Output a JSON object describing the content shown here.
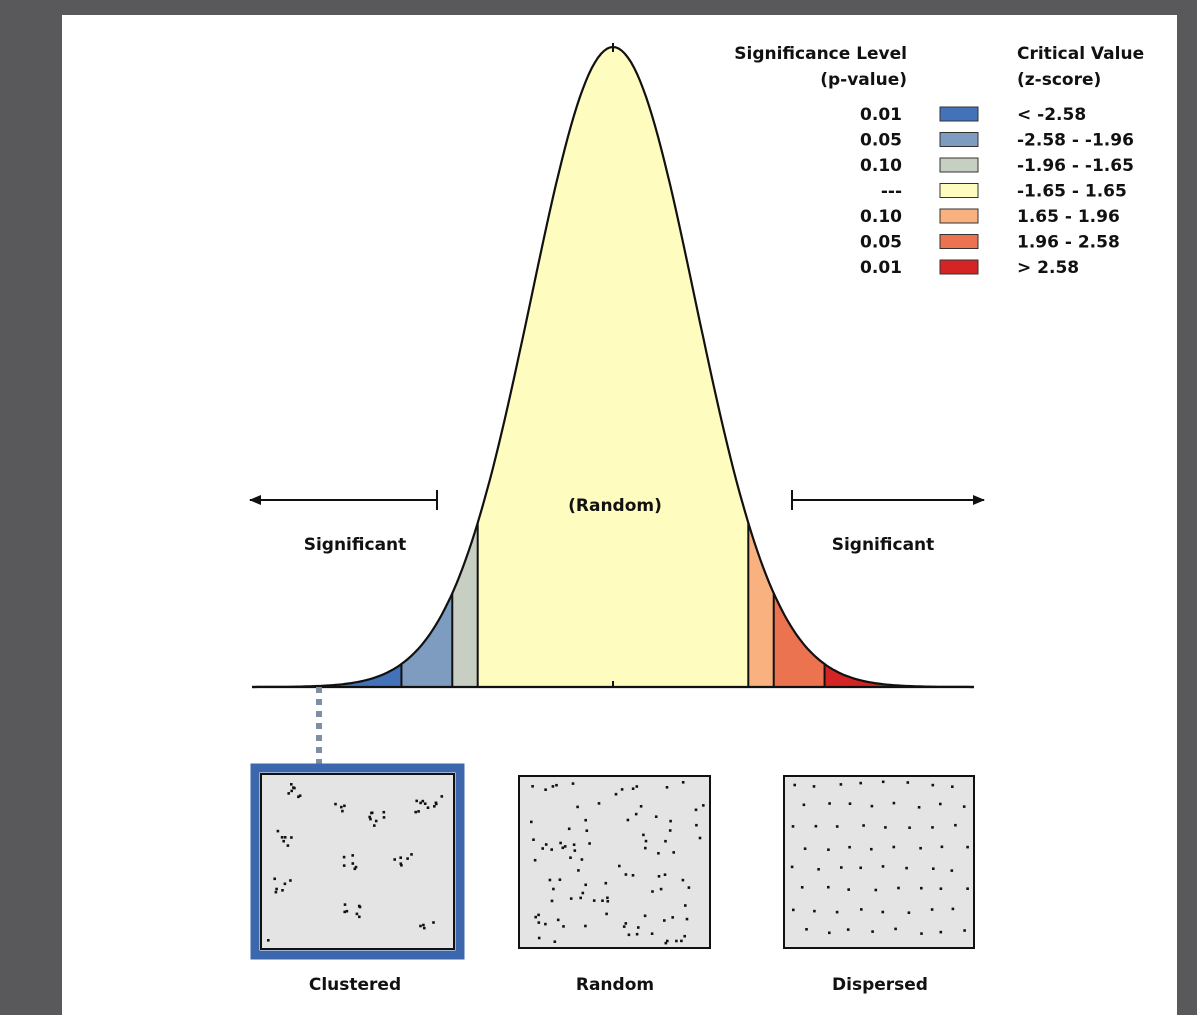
{
  "legend": {
    "heading_left_line1": "Significance Level",
    "heading_left_line2": "(p-value)",
    "heading_right_line1": "Critical Value",
    "heading_right_line2": "(z-score)",
    "rows": [
      {
        "p": "0.01",
        "z": "< -2.58",
        "color": "#4472b8"
      },
      {
        "p": "0.05",
        "z": "-2.58 - -1.96",
        "color": "#7e9cbf"
      },
      {
        "p": "0.10",
        "z": "-1.96 - -1.65",
        "color": "#c6cfc2"
      },
      {
        "p": "---",
        "z": "-1.65 - 1.65",
        "color": "#fefcbe"
      },
      {
        "p": "0.10",
        "z": "1.65 - 1.96",
        "color": "#f9b27f"
      },
      {
        "p": "0.05",
        "z": "1.96 - 2.58",
        "color": "#ec7350"
      },
      {
        "p": "0.01",
        "z": "> 2.58",
        "color": "#d42424"
      }
    ]
  },
  "curve": {
    "random_label": "(Random)",
    "significant_left": "Significant",
    "significant_right": "Significant",
    "critical_values": [
      -2.58,
      -1.96,
      -1.65,
      1.65,
      1.96,
      2.58
    ],
    "z_range": [
      -3.4,
      3.4
    ]
  },
  "patterns": {
    "clustered": "Clustered",
    "random": "Random",
    "dispersed": "Dispersed",
    "highlighted": "clustered",
    "highlight_color": "#3d67ad"
  }
}
